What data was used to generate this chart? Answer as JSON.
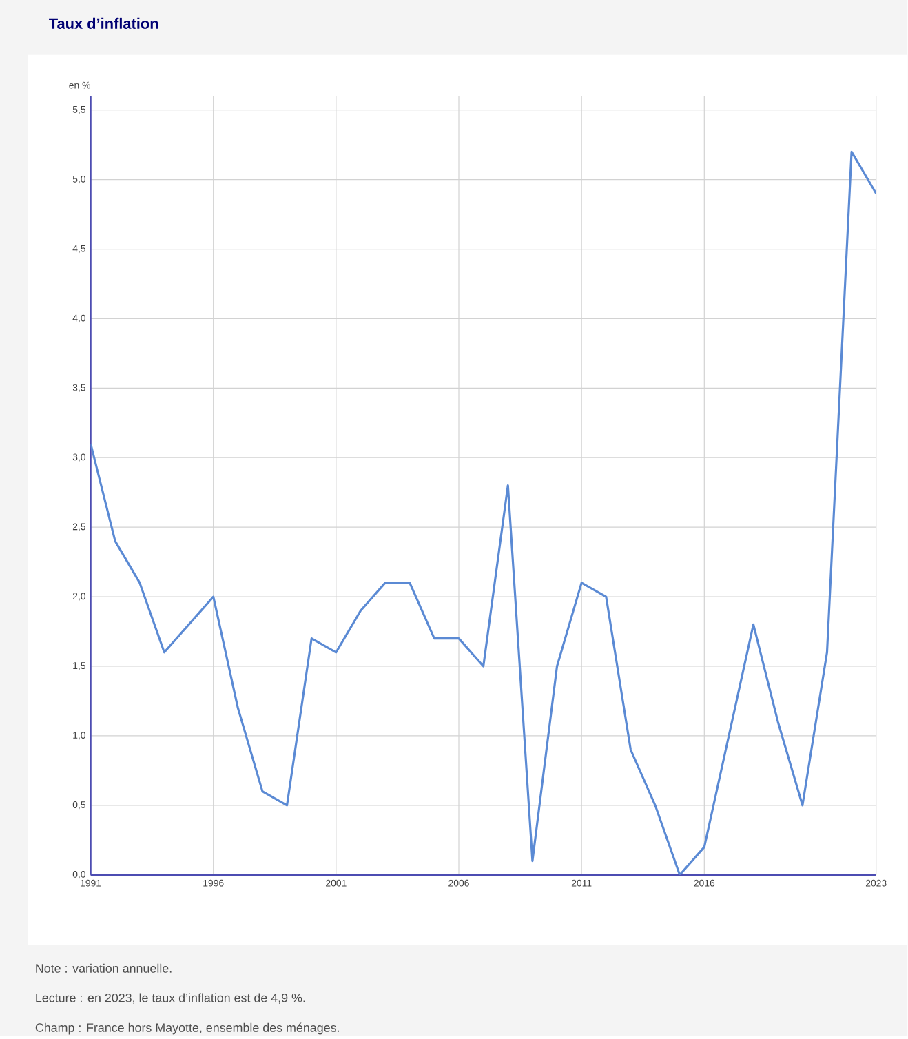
{
  "chart_data": {
    "type": "line",
    "title": "Taux d’inflation",
    "ylabel": "en %",
    "x": [
      1991,
      1992,
      1993,
      1994,
      1995,
      1996,
      1997,
      1998,
      1999,
      2000,
      2001,
      2002,
      2003,
      2004,
      2005,
      2006,
      2007,
      2008,
      2009,
      2010,
      2011,
      2012,
      2013,
      2014,
      2015,
      2016,
      2017,
      2018,
      2019,
      2020,
      2021,
      2022,
      2023
    ],
    "values": [
      3.1,
      2.4,
      2.1,
      1.6,
      1.8,
      2.0,
      1.2,
      0.6,
      0.5,
      1.7,
      1.6,
      1.9,
      2.1,
      2.1,
      1.7,
      1.7,
      1.5,
      2.8,
      0.1,
      1.5,
      2.1,
      2.0,
      0.9,
      0.5,
      0.0,
      0.2,
      1.0,
      1.8,
      1.1,
      0.5,
      1.6,
      5.2,
      4.9
    ],
    "color": "#5b8ad4",
    "xlim": [
      1991,
      2023
    ],
    "xticks": [
      1991,
      1996,
      2001,
      2006,
      2011,
      2016,
      2023
    ],
    "ylim": [
      0,
      5.6
    ],
    "yticks": [
      {
        "value": 0,
        "label": "0,0"
      },
      {
        "value": 0.5,
        "label": "0,5"
      },
      {
        "value": 1,
        "label": "1,0"
      },
      {
        "value": 1.5,
        "label": "1,5"
      },
      {
        "value": 2,
        "label": "2,0"
      },
      {
        "value": 2.5,
        "label": "2,5"
      },
      {
        "value": 3,
        "label": "3,0"
      },
      {
        "value": 3.5,
        "label": "3,5"
      },
      {
        "value": 4,
        "label": "4,0"
      },
      {
        "value": 4.5,
        "label": "4,5"
      },
      {
        "value": 5,
        "label": "5,0"
      },
      {
        "value": 5.5,
        "label": "5,5"
      }
    ],
    "grid": true,
    "annotations": [
      "Note : variation annuelle.",
      "Lecture : en 2023, le taux d’inflation est de 4,9 %.",
      "Champ : France hors Mayotte, ensemble des ménages."
    ]
  }
}
